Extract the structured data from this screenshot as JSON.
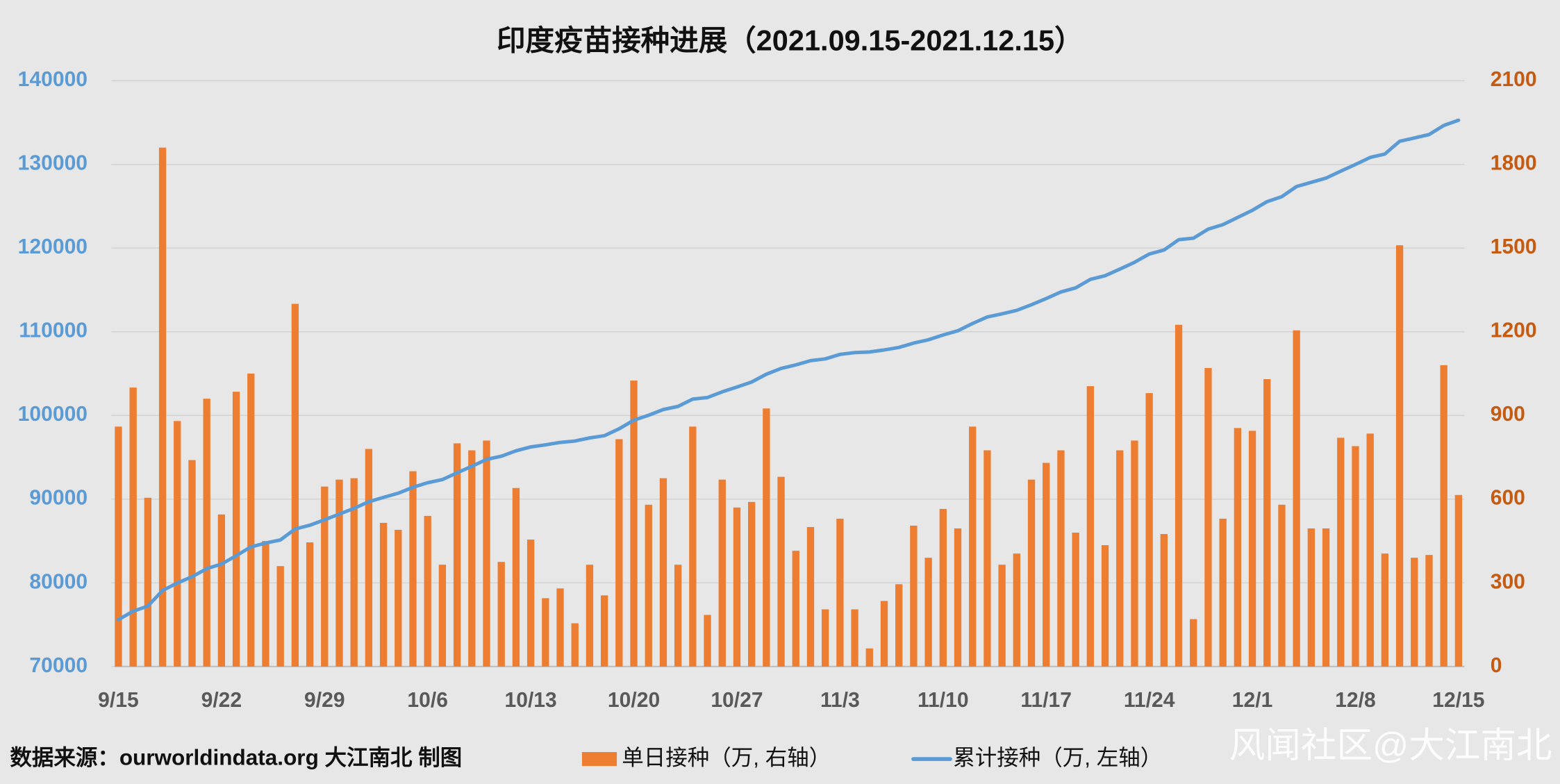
{
  "chart_data": {
    "type": "bar",
    "title": "印度疫苗接种进展（2021.09.15-2021.12.15）",
    "source": "数据来源：ourworldindata.org 大江南北 制图",
    "watermark": "风闻社区@大江南北",
    "categories": [
      "9/15",
      null,
      null,
      null,
      null,
      null,
      null,
      "9/22",
      null,
      null,
      null,
      null,
      null,
      null,
      "9/29",
      null,
      null,
      null,
      null,
      null,
      null,
      "10/6",
      null,
      null,
      null,
      null,
      null,
      null,
      "10/13",
      null,
      null,
      null,
      null,
      null,
      null,
      "10/20",
      null,
      null,
      null,
      null,
      null,
      null,
      "10/27",
      null,
      null,
      null,
      null,
      null,
      null,
      "11/3",
      null,
      null,
      null,
      null,
      null,
      null,
      "11/10",
      null,
      null,
      null,
      null,
      null,
      null,
      "11/17",
      null,
      null,
      null,
      null,
      null,
      null,
      "11/24",
      null,
      null,
      null,
      null,
      null,
      null,
      "12/1",
      null,
      null,
      null,
      null,
      null,
      null,
      "12/8",
      null,
      null,
      null,
      null,
      null,
      null,
      "12/15"
    ],
    "series": [
      {
        "name": "单日接种（万, 右轴）",
        "type": "bar",
        "axis": "y2",
        "color": "#ed7d31",
        "values": [
          860,
          1000,
          605,
          1860,
          880,
          740,
          960,
          545,
          985,
          1050,
          450,
          360,
          1300,
          445,
          645,
          670,
          675,
          780,
          515,
          490,
          700,
          540,
          365,
          800,
          775,
          810,
          375,
          640,
          455,
          245,
          280,
          155,
          365,
          255,
          815,
          1025,
          580,
          675,
          365,
          860,
          185,
          670,
          570,
          590,
          925,
          680,
          415,
          500,
          205,
          530,
          205,
          65,
          235,
          295,
          505,
          390,
          565,
          495,
          860,
          775,
          365,
          405,
          670,
          730,
          775,
          480,
          1005,
          435,
          775,
          810,
          980,
          475,
          1225,
          170,
          1070,
          530,
          855,
          845,
          1030,
          580,
          1205,
          495,
          495,
          820,
          790,
          835,
          405,
          1510,
          390,
          400,
          1080,
          615
        ]
      },
      {
        "name": "累计接种（万, 左轴）",
        "type": "line",
        "color": "#5b9bd5",
        "values": [
          75600,
          76608,
          77221,
          79089,
          79977,
          80725,
          81693,
          82246,
          83239,
          84297,
          84755,
          85123,
          86431,
          86884,
          87537,
          88215,
          88898,
          89686,
          90209,
          90707,
          91415,
          91963,
          92336,
          93144,
          93927,
          94745,
          95128,
          95776,
          96239,
          96492,
          96780,
          96943,
          97316,
          97579,
          98402,
          99435,
          100023,
          100706,
          101079,
          101947,
          102140,
          102818,
          103396,
          103994,
          104927,
          105615,
          106038,
          106546,
          106759,
          107297,
          107510,
          107583,
          107826,
          108129,
          108642,
          109040,
          109613,
          110116,
          110984,
          111767,
          112140,
          112553,
          113231,
          113969,
          114752,
          115240,
          116253,
          116696,
          117479,
          118297,
          119285,
          119768,
          121001,
          121179,
          122257,
          122795,
          123658,
          124511,
          125549,
          126137,
          127350,
          127853,
          128356,
          129184,
          129982,
          130825,
          131238,
          132756,
          133154,
          133562,
          134650,
          135273
        ]
      }
    ],
    "ylim": [
      70000,
      140000
    ],
    "yticks": [
      70000,
      80000,
      90000,
      100000,
      110000,
      120000,
      130000,
      140000
    ],
    "y2lim": [
      0,
      2100
    ],
    "y2ticks": [
      0,
      300,
      600,
      900,
      1200,
      1500,
      1800,
      2100
    ],
    "grid": true,
    "ycolor": "#5b9bd5",
    "y2color": "#c55a11"
  }
}
